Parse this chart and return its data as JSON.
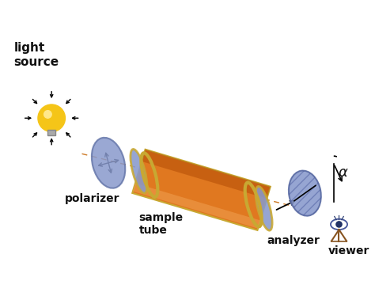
{
  "bg_color": "#ffffff",
  "title": "",
  "labels": {
    "light_source": "light\nsource",
    "polarizer": "polarizer",
    "sample_tube": "sample\ntube",
    "analyzer": "analyzer",
    "viewer": "viewer",
    "alpha": "α"
  },
  "colors": {
    "bulb_body": "#f5c518",
    "bulb_base": "#aaaaaa",
    "polarizer_disk": "#8899cc",
    "polarizer_disk_edge": "#6677aa",
    "tube_body": "#e07820",
    "tube_end": "#8899cc",
    "tube_end_edge": "#6677aa",
    "tube_ring": "#c8a832",
    "analyzer_disk": "#8899cc",
    "analyzer_disk_edge": "#6677aa",
    "arrow_color": "#111111",
    "label_color": "#111111",
    "highlight": "#f0a050",
    "shadow": "#aa4400",
    "dashed_axis": "#cc7722"
  }
}
